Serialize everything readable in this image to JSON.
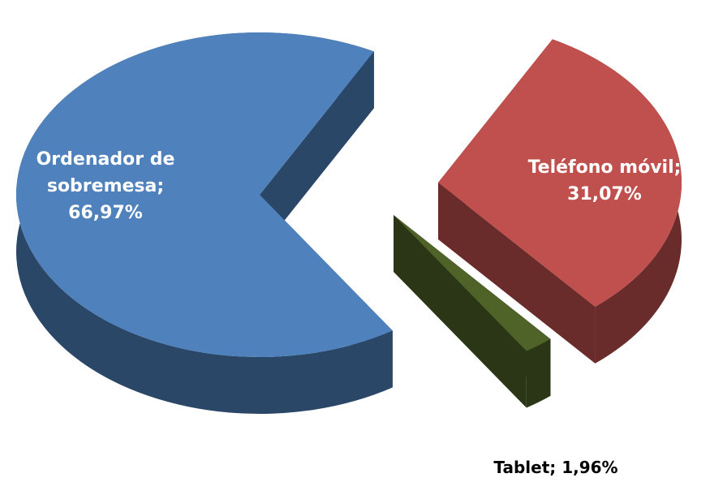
{
  "chart_data": {
    "type": "pie",
    "values": [
      31.07,
      1.96,
      66.97
    ],
    "value_labels": [
      "Teléfono móvil; 31,07%",
      "Tablet; 1,96%",
      "Ordenador de sobremesa; 66,97%"
    ],
    "colors": [
      "#c0504d",
      "#4f6228",
      "#4f81bd"
    ]
  }
}
